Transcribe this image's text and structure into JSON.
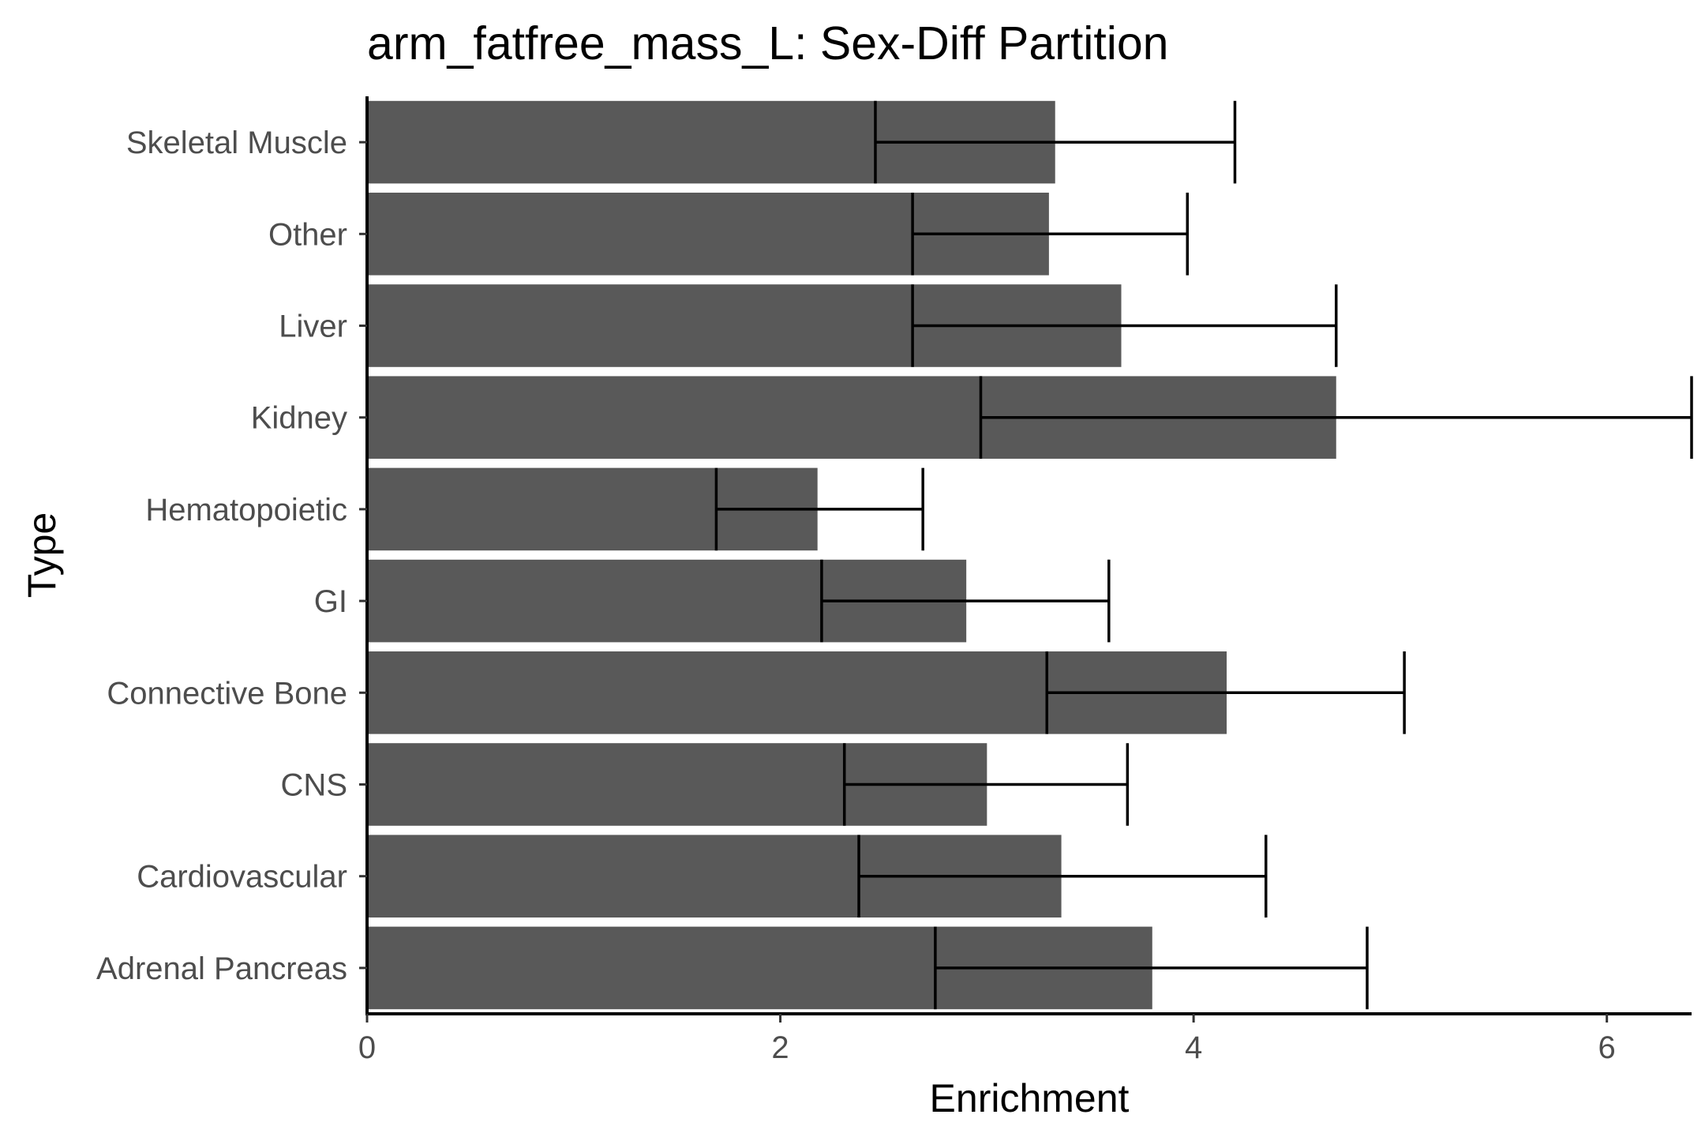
{
  "chart_data": {
    "type": "bar",
    "orientation": "horizontal",
    "title": "arm_fatfree_mass_L: Sex-Diff Partition",
    "xlabel": "Enrichment",
    "ylabel": "Type",
    "categories": [
      "Adrenal Pancreas",
      "Cardiovascular",
      "CNS",
      "Connective Bone",
      "GI",
      "Hematopoietic",
      "Kidney",
      "Liver",
      "Other",
      "Skeletal Muscle"
    ],
    "values": [
      3.8,
      3.36,
      3.0,
      4.16,
      2.9,
      2.18,
      4.69,
      3.65,
      3.3,
      3.33
    ],
    "error_low": [
      2.75,
      2.38,
      2.31,
      3.29,
      2.2,
      1.69,
      2.97,
      2.64,
      2.64,
      2.46
    ],
    "error_high": [
      4.84,
      4.35,
      3.68,
      5.02,
      3.59,
      2.69,
      6.41,
      4.69,
      3.97,
      4.2
    ],
    "xlim": [
      0,
      6.41
    ],
    "xticks": [
      0,
      2,
      4,
      6
    ],
    "grid": false,
    "bar_color": "#595959",
    "errorbar_color": "#000000"
  }
}
